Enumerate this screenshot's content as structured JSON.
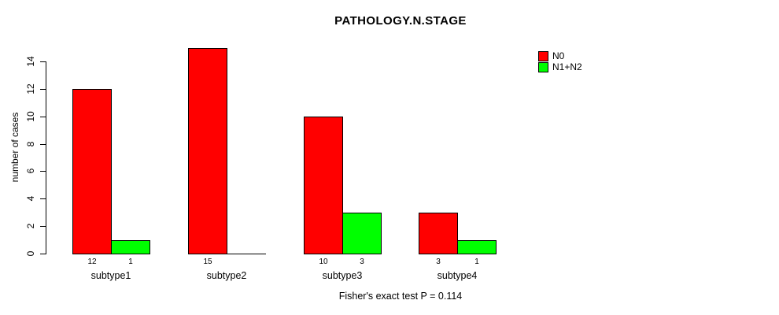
{
  "title": "PATHOLOGY.N.STAGE",
  "ylabel": "number of cases",
  "footer": "Fisher's exact test P = 0.114",
  "colors": {
    "n0": "#FF0000",
    "n1n2": "#00FF00",
    "axis": "#000000",
    "background": "#FFFFFF"
  },
  "legend": {
    "position": "right",
    "items": [
      {
        "label": "N0",
        "color": "#FF0000"
      },
      {
        "label": "N1+N2",
        "color": "#00FF00"
      }
    ]
  },
  "chart_data": {
    "type": "bar",
    "grouped": true,
    "categories": [
      "subtype1",
      "subtype2",
      "subtype3",
      "subtype4"
    ],
    "series": [
      {
        "name": "N0",
        "color": "#FF0000",
        "values": [
          12,
          15,
          10,
          3
        ]
      },
      {
        "name": "N1+N2",
        "color": "#00FF00",
        "values": [
          1,
          0,
          3,
          1
        ]
      }
    ],
    "bar_value_labels": {
      "N0": [
        12,
        15,
        10,
        3
      ],
      "N1+N2": [
        1,
        0,
        3,
        1
      ]
    },
    "title": "PATHOLOGY.N.STAGE",
    "xlabel": "",
    "ylabel": "number of cases",
    "ylim": [
      0,
      14
    ],
    "yticks": [
      0,
      2,
      4,
      6,
      8,
      10,
      12,
      14
    ],
    "grid": false,
    "legend_position": "right",
    "annotation": "Fisher's exact test P = 0.114"
  }
}
